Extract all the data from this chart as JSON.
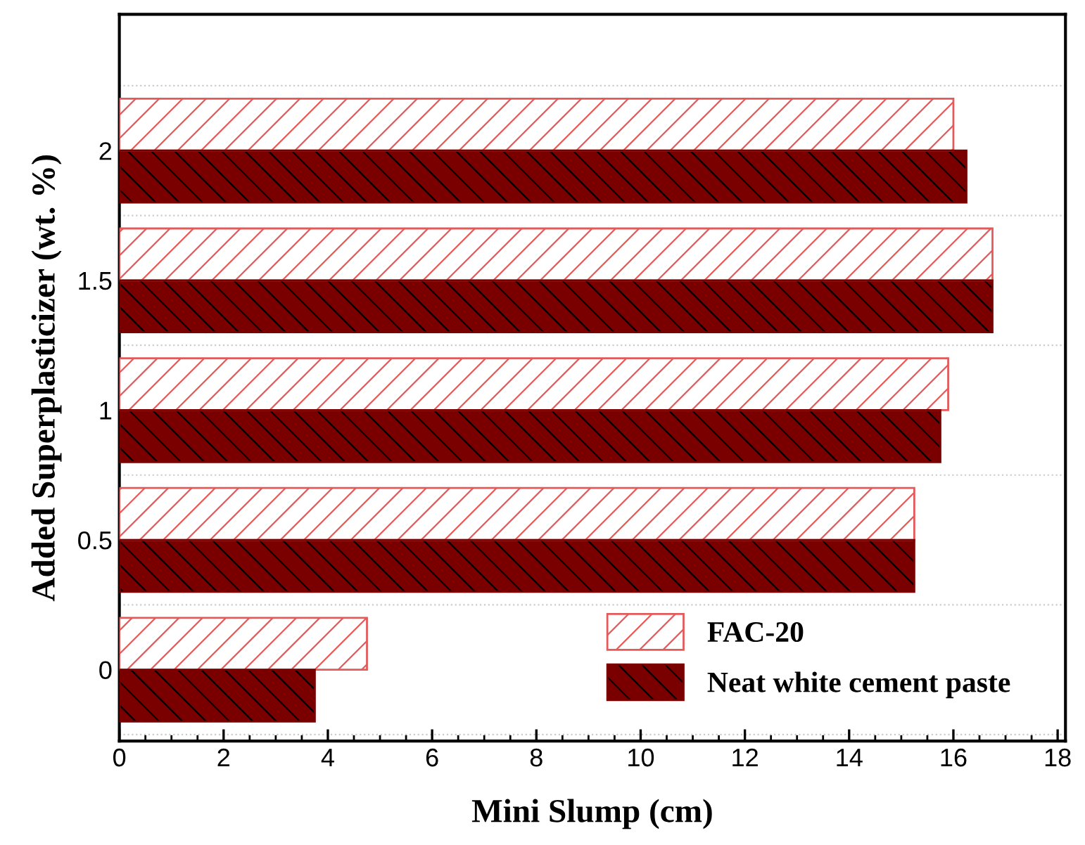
{
  "chart_data": {
    "type": "bar",
    "orientation": "horizontal",
    "xlabel": "Mini Slump (cm)",
    "ylabel": "Added Superplasticizer (wt. %)",
    "categories": [
      "2",
      "1.5",
      "1",
      "0.5",
      "0"
    ],
    "series": [
      {
        "name": "FAC-20",
        "color": "#e35a5a",
        "values": [
          16,
          16.75,
          15.9,
          15.25,
          4.75
        ]
      },
      {
        "name": "Neat white cement paste",
        "color": "#7a0000",
        "values": [
          16.25,
          16.75,
          15.75,
          15.25,
          3.75
        ]
      }
    ],
    "xlim": [
      0,
      18.15
    ],
    "xticks": [
      0,
      2,
      4,
      6,
      8,
      10,
      12,
      14,
      16,
      18
    ],
    "grid": "y",
    "legend": "bottom right"
  }
}
